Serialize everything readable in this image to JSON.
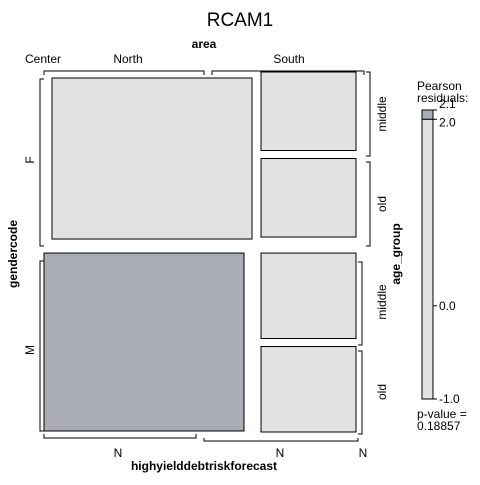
{
  "chart_data": {
    "type": "mosaic",
    "title": "RCAM1",
    "variables": {
      "top": "area",
      "left": "gendercode",
      "right": "age_group",
      "bottom": "highyielddebtriskforecast"
    },
    "area_levels": [
      "Center",
      "North",
      "South"
    ],
    "gendercode_levels": [
      "F",
      "M"
    ],
    "age_group_levels": [
      "middle",
      "old"
    ],
    "highyield_levels": [
      "N"
    ],
    "bottom_labels": [
      "N",
      "N",
      "N"
    ],
    "cells": [
      {
        "gendercode": "F",
        "area": "Center",
        "age_group": "middle",
        "forecast": "N",
        "proportion": 0.0,
        "residual": 0.0
      },
      {
        "gendercode": "F",
        "area": "Center",
        "age_group": "old",
        "forecast": "N",
        "proportion": 0.0,
        "residual": 0.0
      },
      {
        "gendercode": "F",
        "area": "North",
        "age_group": "middle",
        "forecast": "N",
        "proportion": 0.24,
        "residual": 0.0
      },
      {
        "gendercode": "F",
        "area": "North",
        "age_group": "old",
        "forecast": "N",
        "proportion": 0.24,
        "residual": 0.0
      },
      {
        "gendercode": "F",
        "area": "South",
        "age_group": "middle",
        "forecast": "N",
        "proportion": 0.12,
        "residual": 0.0
      },
      {
        "gendercode": "F",
        "area": "South",
        "age_group": "old",
        "forecast": "N",
        "proportion": 0.12,
        "residual": 0.0
      },
      {
        "gendercode": "M",
        "area": "Center",
        "age_group": "middle",
        "forecast": "N",
        "proportion": 0.0,
        "residual": 0.0
      },
      {
        "gendercode": "M",
        "area": "Center",
        "age_group": "old",
        "forecast": "N",
        "proportion": 0.0,
        "residual": 0.0
      },
      {
        "gendercode": "M",
        "area": "North",
        "age_group": "middle",
        "forecast": "N",
        "proportion": 0.26,
        "residual": 2.1
      },
      {
        "gendercode": "M",
        "area": "North",
        "age_group": "old",
        "forecast": "N",
        "proportion": 0.26,
        "residual": 2.1
      },
      {
        "gendercode": "M",
        "area": "South",
        "age_group": "middle",
        "forecast": "N",
        "proportion": 0.13,
        "residual": 0.0
      },
      {
        "gendercode": "M",
        "area": "South",
        "age_group": "old",
        "forecast": "N",
        "proportion": 0.13,
        "residual": 0.0
      }
    ],
    "legend": {
      "title_line1": "Pearson",
      "title_line2": "residuals:",
      "min": -1.0,
      "max": 2.1,
      "ticks": [
        {
          "value": 2.1,
          "label": "2.1"
        },
        {
          "value": 2.0,
          "label": "2.0"
        },
        {
          "value": 0.0,
          "label": "0.0"
        },
        {
          "value": -1.0,
          "label": "-1.0"
        }
      ],
      "colors": {
        "positive": "#a9abb5",
        "neutral": "#e2e2e2"
      },
      "pvalue_label": "p-value =",
      "pvalue": "0.18857"
    }
  }
}
